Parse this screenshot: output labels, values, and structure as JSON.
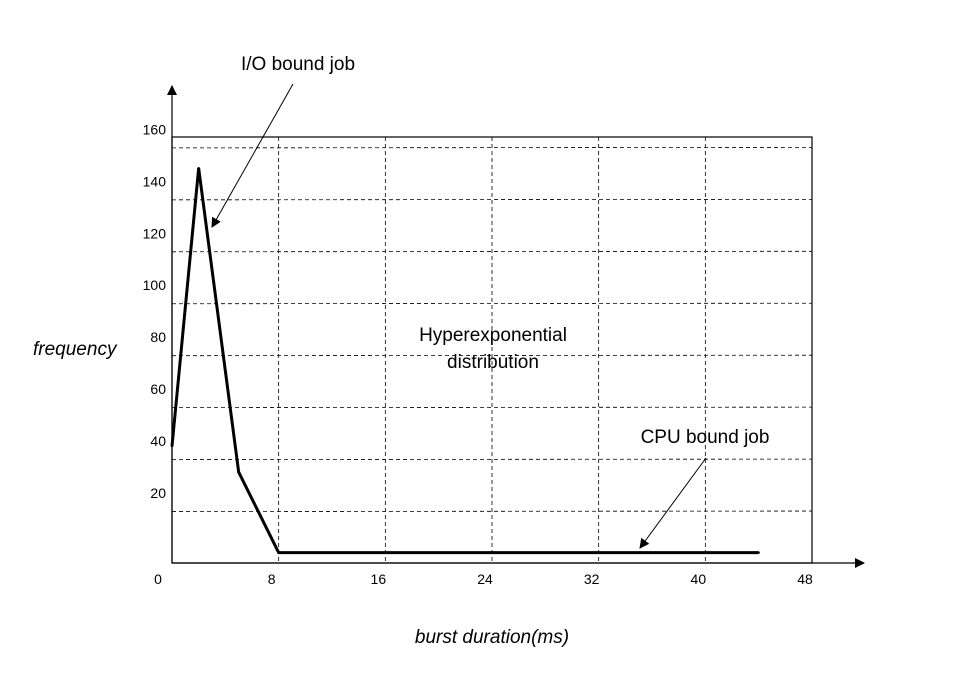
{
  "chart_data": {
    "type": "line",
    "xlabel": "burst duration(ms)",
    "ylabel": "frequency",
    "x_ticks": [
      "0",
      "8",
      "16",
      "24",
      "32",
      "40",
      "48"
    ],
    "y_ticks": [
      "20",
      "40",
      "60",
      "80",
      "100",
      "120",
      "140",
      "160"
    ],
    "xlim": [
      0,
      48
    ],
    "ylim": [
      0,
      160
    ],
    "grid": true,
    "series": [
      {
        "x": [
          0,
          2,
          5,
          8,
          44
        ],
        "y": [
          45,
          152,
          35,
          4,
          4
        ]
      }
    ],
    "annotations": {
      "io": "I/O bound job",
      "dist_line1": "Hyperexponential",
      "dist_line2": "distribution",
      "cpu": "CPU bound job"
    }
  }
}
